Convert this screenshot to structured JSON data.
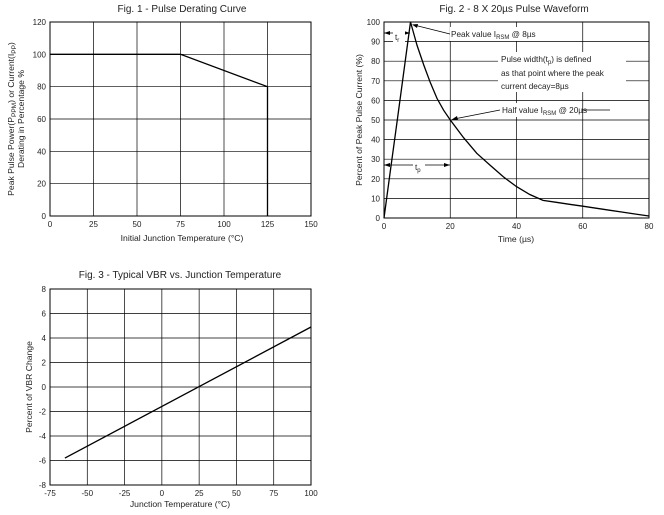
{
  "chart_data": [
    {
      "type": "line",
      "title": "Fig. 1 - Pulse Derating Curve",
      "xlabel": "Initial Junction Temperature (°C)",
      "ylabel_line1_parts": [
        "Peak Pulse Power(P",
        "PPM",
        ") or Current(I",
        "PP",
        ")"
      ],
      "ylabel_line2": "Derating in Percentage %",
      "x_ticks": [
        "0",
        "25",
        "50",
        "75",
        "100",
        "125",
        "150"
      ],
      "y_ticks": [
        "0",
        "20",
        "40",
        "60",
        "80",
        "100",
        "120"
      ],
      "xlim": [
        0,
        150
      ],
      "ylim": [
        0,
        120
      ],
      "grid": true,
      "series": [
        {
          "x": [
            0,
            75,
            125,
            125
          ],
          "y": [
            100,
            100,
            80,
            0
          ]
        }
      ]
    },
    {
      "type": "line",
      "title": "Fig. 2 - 8 X 20µs Pulse Waveform",
      "xlabel": "Time (µs)",
      "ylabel": "Percent of Peak Pulse Current (%)",
      "x_ticks": [
        "0",
        "20",
        "40",
        "60",
        "80"
      ],
      "y_ticks": [
        "0",
        "10",
        "20",
        "30",
        "40",
        "50",
        "60",
        "70",
        "80",
        "90",
        "100"
      ],
      "xlim": [
        0,
        80
      ],
      "ylim": [
        0,
        100
      ],
      "grid": true,
      "series": [
        {
          "x": [
            0,
            2,
            4,
            6,
            8,
            10,
            12,
            14,
            16,
            18,
            20,
            24,
            28,
            32,
            36,
            40,
            44,
            48,
            52,
            56,
            60,
            64,
            68,
            72,
            76,
            80
          ],
          "y": [
            0,
            25,
            50,
            75,
            100,
            88,
            78,
            69,
            61,
            55,
            50,
            41,
            33,
            27,
            21,
            16,
            12,
            9,
            8,
            7,
            6,
            5,
            4,
            3,
            2,
            1
          ]
        }
      ],
      "annotations": {
        "tr": {
          "main": "t",
          "sub": "r"
        },
        "tp": {
          "main": "t",
          "sub": "p"
        },
        "peak": {
          "pre": "Peak value I",
          "sub": "RSM",
          "post": " @ 8µs"
        },
        "pulse_line1_parts": [
          "Pulse width(t",
          "p",
          ") is defined"
        ],
        "pulse_line2": "as that point where the peak",
        "pulse_line3": "current decay=8µs",
        "half": {
          "pre": "Half value I",
          "sub": "RSM",
          "post": " @ 20µs"
        }
      }
    },
    {
      "type": "line",
      "title": "Fig. 3 - Typical VBR vs. Junction Temperature",
      "xlabel": "Junction Temperature (°C)",
      "ylabel": "Percent of VBR Change",
      "x_ticks": [
        "-75",
        "-50",
        "-25",
        "0",
        "25",
        "50",
        "75",
        "100"
      ],
      "y_ticks": [
        "-8",
        "-6",
        "-4",
        "-2",
        "0",
        "2",
        "4",
        "6",
        "8"
      ],
      "xlim": [
        -75,
        100
      ],
      "ylim": [
        -8,
        8
      ],
      "grid": true,
      "series": [
        {
          "x": [
            -65,
            100
          ],
          "y": [
            -5.8,
            4.9
          ]
        }
      ]
    }
  ]
}
